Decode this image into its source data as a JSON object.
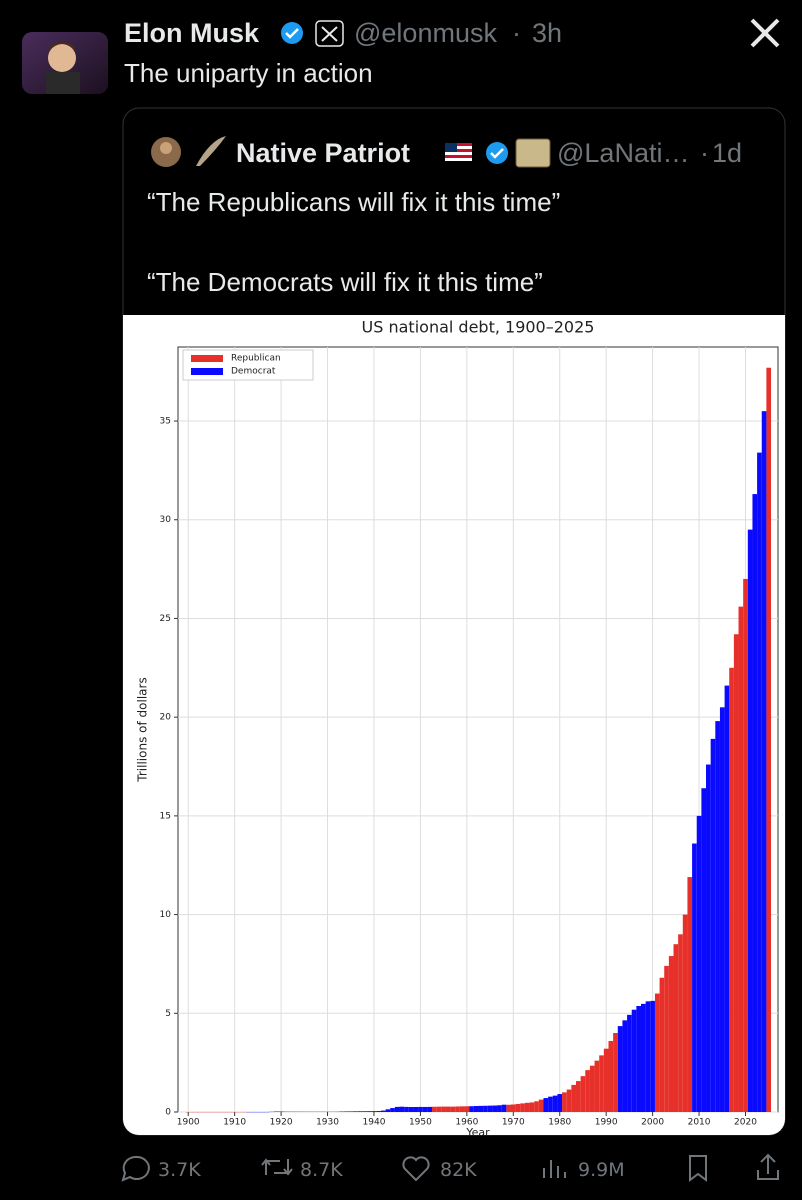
{
  "tweet": {
    "author": "Elon Musk",
    "handle": "@elonmusk",
    "separator": "·",
    "time": "3h",
    "text": "The uniparty in action"
  },
  "quote": {
    "author": "Native Patriot",
    "handle": "@LaNati…",
    "separator": "·",
    "time": "1d",
    "lines": [
      "“The Republicans will fix it this time”",
      "“The Democrats will fix it this time”"
    ]
  },
  "chart_data": {
    "type": "bar",
    "title": "US national debt, 1900–2025",
    "y_label": "Trillions of dollars",
    "x_label": "Year",
    "x": [
      1900,
      1901,
      1902,
      1903,
      1904,
      1905,
      1906,
      1907,
      1908,
      1909,
      1910,
      1911,
      1912,
      1913,
      1914,
      1915,
      1916,
      1917,
      1918,
      1919,
      1920,
      1921,
      1922,
      1923,
      1924,
      1925,
      1926,
      1927,
      1928,
      1929,
      1930,
      1931,
      1932,
      1933,
      1934,
      1935,
      1936,
      1937,
      1938,
      1939,
      1940,
      1941,
      1942,
      1943,
      1944,
      1945,
      1946,
      1947,
      1948,
      1949,
      1950,
      1951,
      1952,
      1953,
      1954,
      1955,
      1956,
      1957,
      1958,
      1959,
      1960,
      1961,
      1962,
      1963,
      1964,
      1965,
      1966,
      1967,
      1968,
      1969,
      1970,
      1971,
      1972,
      1973,
      1974,
      1975,
      1976,
      1977,
      1978,
      1979,
      1980,
      1981,
      1982,
      1983,
      1984,
      1985,
      1986,
      1987,
      1988,
      1989,
      1990,
      1991,
      1992,
      1993,
      1994,
      1995,
      1996,
      1997,
      1998,
      1999,
      2000,
      2001,
      2002,
      2003,
      2004,
      2005,
      2006,
      2007,
      2008,
      2009,
      2010,
      2011,
      2012,
      2013,
      2014,
      2015,
      2016,
      2017,
      2018,
      2019,
      2020,
      2021,
      2022,
      2023,
      2024,
      2025
    ],
    "series": [
      {
        "name": "Republican",
        "color": "#e8302a",
        "values": [
          0.001,
          0.001,
          0.001,
          0.001,
          0.001,
          0.001,
          0.001,
          0.001,
          0.001,
          0.001,
          0.001,
          0.001,
          0.001,
          null,
          null,
          null,
          null,
          null,
          null,
          null,
          null,
          0.024,
          0.023,
          0.022,
          0.021,
          0.02,
          0.019,
          0.018,
          0.018,
          0.017,
          0.016,
          0.017,
          0.019,
          null,
          null,
          null,
          null,
          null,
          null,
          null,
          null,
          null,
          null,
          null,
          null,
          null,
          null,
          null,
          null,
          null,
          null,
          null,
          null,
          0.266,
          0.271,
          0.274,
          0.273,
          0.272,
          0.28,
          0.287,
          0.291,
          null,
          null,
          null,
          null,
          null,
          null,
          null,
          null,
          0.366,
          0.381,
          0.408,
          0.436,
          0.466,
          0.484,
          0.542,
          0.629,
          null,
          null,
          null,
          null,
          0.995,
          1.137,
          1.372,
          1.565,
          1.817,
          2.121,
          2.346,
          2.601,
          2.868,
          3.207,
          3.598,
          4.002,
          null,
          null,
          null,
          null,
          null,
          null,
          null,
          null,
          6.0,
          6.8,
          7.4,
          7.9,
          8.5,
          9.0,
          10.0,
          11.9,
          null,
          null,
          null,
          null,
          null,
          null,
          null,
          null,
          22.5,
          24.2,
          25.6,
          27.0,
          null,
          null,
          null,
          null,
          37.7
        ]
      },
      {
        "name": "Democrat",
        "color": "#0a0aff",
        "values": [
          null,
          null,
          null,
          null,
          null,
          null,
          null,
          null,
          null,
          null,
          null,
          null,
          null,
          0.001,
          0.001,
          0.001,
          0.001,
          0.003,
          0.012,
          0.025,
          0.024,
          null,
          null,
          null,
          null,
          null,
          null,
          null,
          null,
          null,
          null,
          null,
          null,
          0.022,
          0.027,
          0.029,
          0.034,
          0.036,
          0.037,
          0.04,
          0.043,
          0.049,
          0.072,
          0.137,
          0.201,
          0.259,
          0.269,
          0.258,
          0.252,
          0.253,
          0.257,
          0.255,
          0.259,
          null,
          null,
          null,
          null,
          null,
          null,
          null,
          null,
          0.293,
          0.303,
          0.31,
          0.316,
          0.322,
          0.328,
          0.341,
          0.37,
          null,
          null,
          null,
          null,
          null,
          null,
          null,
          null,
          0.706,
          0.777,
          0.829,
          0.909,
          null,
          null,
          null,
          null,
          null,
          null,
          null,
          null,
          null,
          null,
          null,
          null,
          4.351,
          4.643,
          4.921,
          5.181,
          5.369,
          5.478,
          5.606,
          5.629,
          null,
          null,
          null,
          null,
          null,
          null,
          null,
          null,
          13.6,
          15.0,
          16.4,
          17.6,
          18.9,
          19.8,
          20.5,
          21.6,
          null,
          null,
          null,
          null,
          29.5,
          31.3,
          33.4,
          35.5,
          null
        ]
      }
    ],
    "xlim": [
      1897.8,
      2027
    ],
    "xticks": [
      1900,
      1910,
      1920,
      1930,
      1940,
      1950,
      1960,
      1970,
      1980,
      1990,
      2000,
      2010,
      2020
    ],
    "ylim": [
      0,
      38.75
    ],
    "yticks": [
      0,
      5,
      10,
      15,
      20,
      25,
      30,
      35
    ],
    "grid": true,
    "legend": "upper left"
  },
  "actions": {
    "replies": "3.7K",
    "reposts": "8.7K",
    "likes": "82K",
    "views": "9.9M"
  }
}
